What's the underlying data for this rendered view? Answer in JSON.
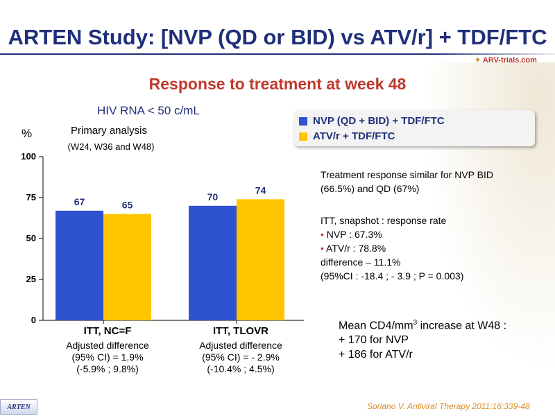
{
  "title": "ARTEN Study: [NVP (QD or BID) vs ATV/r] + TDF/FTC",
  "brand": "ARV-trials.com",
  "subtitle": "Response to treatment at week 48",
  "endpoint": "HIV RNA < 50 c/mL",
  "primary_analysis": "Primary analysis",
  "analysis_window": "(W24, W36 and W48)",
  "colors": {
    "nvp": "#2f52d0",
    "atv": "#ffc600",
    "title": "#1f2f7a",
    "accent": "#c0392b"
  },
  "chart_data": {
    "type": "bar",
    "ylabel": "%",
    "ylim": [
      0,
      100
    ],
    "yticks": [
      0,
      25,
      50,
      75,
      100
    ],
    "categories": [
      "ITT, NC=F",
      "ITT, TLOVR"
    ],
    "series": [
      {
        "name": "NVP (QD + BID) + TDF/FTC",
        "values": [
          67,
          70
        ]
      },
      {
        "name": "ATV/r + TDF/FTC",
        "values": [
          65,
          74
        ]
      }
    ],
    "legend_position": "top-right",
    "grid": false
  },
  "category_notes": [
    {
      "line1": "Adjusted difference",
      "line2": "(95% CI) = 1.9%",
      "line3": "(-5.9% ; 9.8%)"
    },
    {
      "line1": "Adjusted difference",
      "line2": "(95% CI) = - 2.9%",
      "line3": "(-10.4% ; 4.5%)"
    }
  ],
  "notes": {
    "similar_1": "Treatment response similar for NVP BID",
    "similar_2": "(66.5%) and QD (67%)",
    "itt_title": "ITT, snapshot : response rate",
    "nvp_rate": "NVP : 67.3%",
    "atv_rate": "ATV/r : 78.8%",
    "difference": "difference – 11.1%",
    "ci": "(95%CI : -18.4 ; - 3.9 ; P = 0.003)"
  },
  "cd4": {
    "line1_prefix": "Mean CD4/mm",
    "line1_sup": "3",
    "line1_suffix": " increase at W48 :",
    "line2": "+ 170 for NVP",
    "line3": "+ 186 for ATV/r"
  },
  "footer_tag": "ARTEN",
  "citation": "Soriano V. Antiviral Therapy 2011;16:339-48"
}
